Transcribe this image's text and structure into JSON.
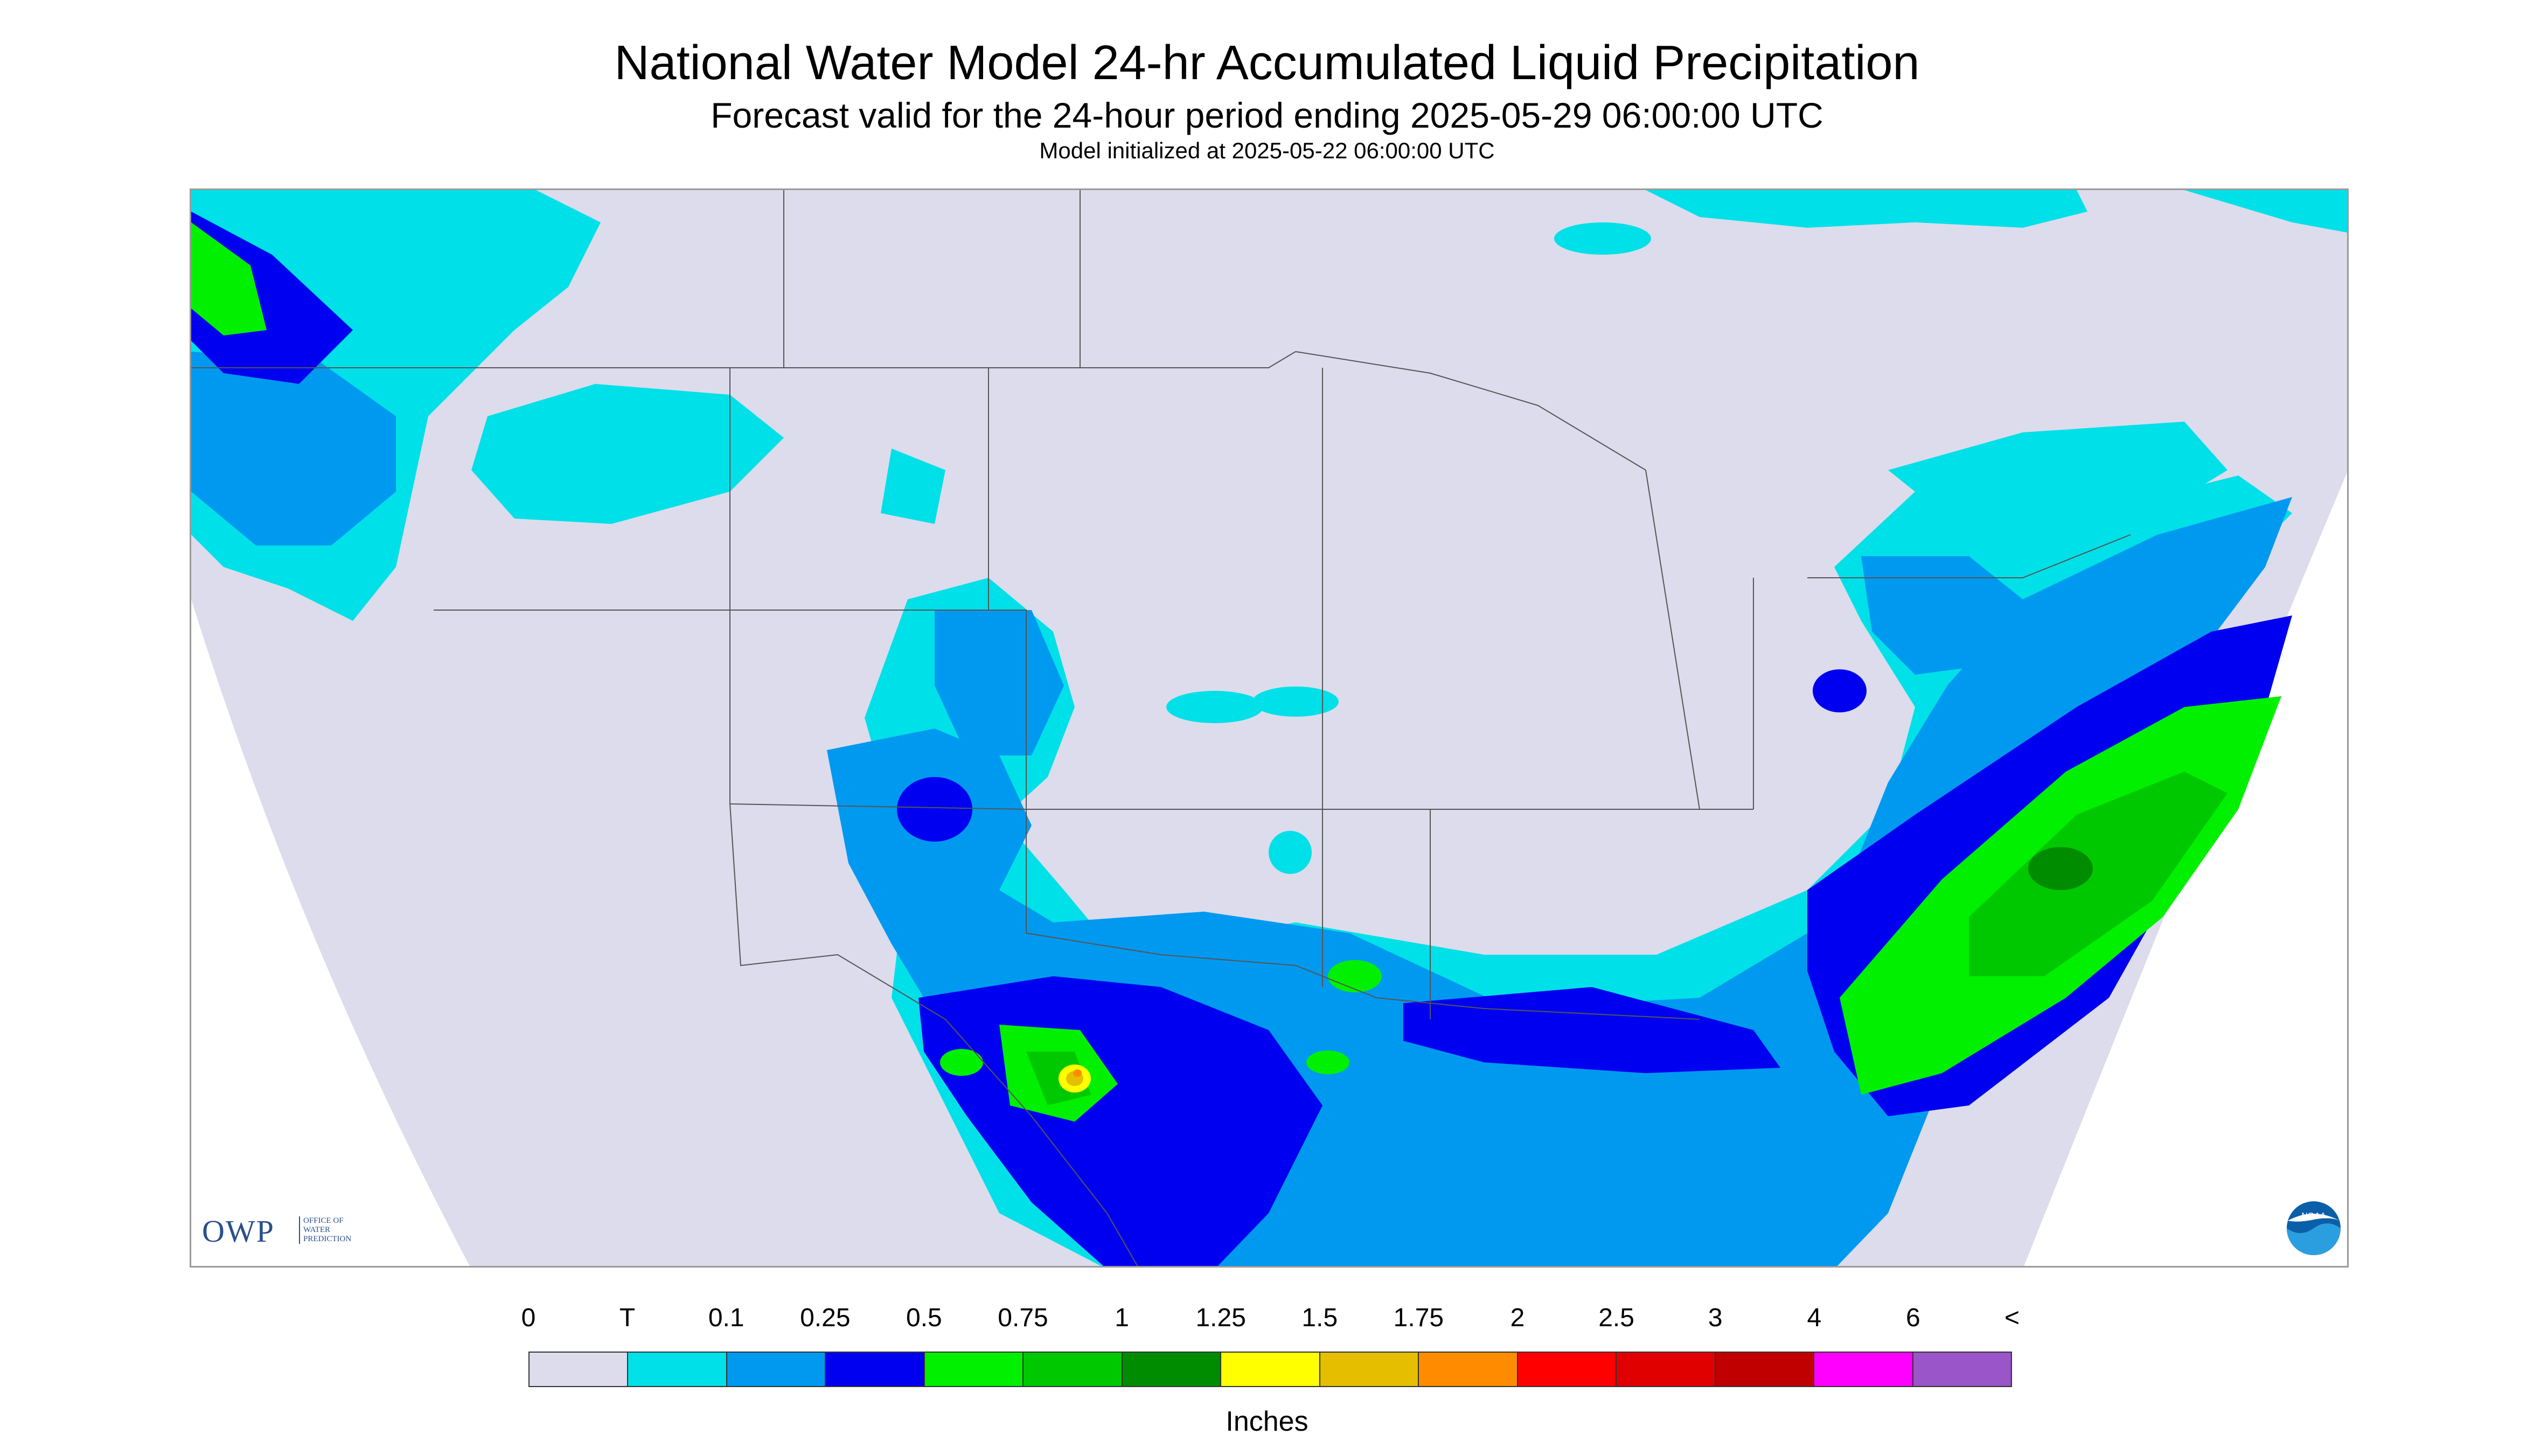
{
  "header": {
    "title": "National Water Model 24-hr Accumulated Liquid Precipitation",
    "subtitle": "Forecast valid for the 24-hour period ending 2025-05-29 06:00:00 UTC",
    "init": "Model initialized at 2025-05-22 06:00:00 UTC"
  },
  "logos": {
    "owp_letters": "OWP",
    "owp_sub_1": "OFFICE OF",
    "owp_sub_2": "WATER",
    "owp_sub_3": "PREDICTION",
    "noaa": "NOAA"
  },
  "legend": {
    "ticks": [
      "0",
      "T",
      "0.1",
      "0.25",
      "0.5",
      "0.75",
      "1",
      "1.25",
      "1.5",
      "1.75",
      "2",
      "2.5",
      "3",
      "4",
      "6",
      "<"
    ],
    "colors": [
      "#dcdcec",
      "#00e0e8",
      "#0099f0",
      "#0000f0",
      "#00f000",
      "#00c800",
      "#008c00",
      "#ffff00",
      "#e6be00",
      "#ff8c00",
      "#ff0000",
      "#e00000",
      "#c00000",
      "#ff00ff",
      "#9a55c8"
    ],
    "units": "Inches"
  },
  "colors": {
    "nodata": "#ffffff",
    "background_zero": "#dcdcec",
    "trace": "#00e0e8",
    "tenth": "#0099f0",
    "quarter": "#0000f0",
    "half": "#00f000",
    "three_quarter": "#00c800",
    "one_inch": "#008c00",
    "one_quarter": "#ffff00",
    "one_half": "#e6be00",
    "one_three_quarter": "#ff8c00"
  }
}
